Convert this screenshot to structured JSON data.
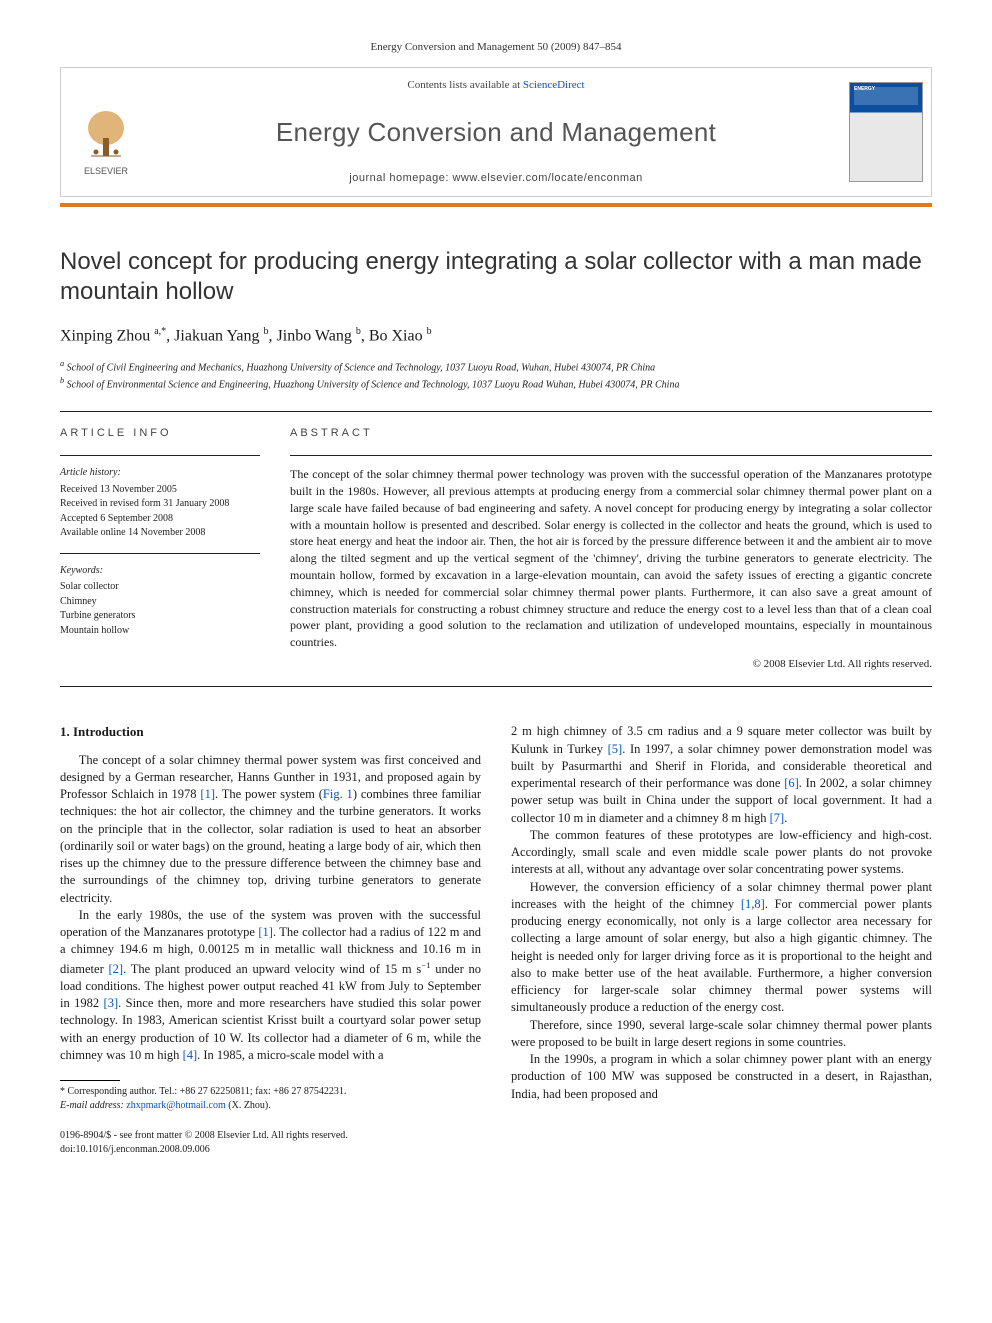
{
  "citation": "Energy Conversion and Management 50 (2009) 847–854",
  "header": {
    "contents_prefix": "Contents lists available at ",
    "contents_link": "ScienceDirect",
    "journal": "Energy Conversion and Management",
    "homepage_prefix": "journal homepage: ",
    "homepage_url": "www.elsevier.com/locate/enconman",
    "publisher_name": "ELSEVIER",
    "cover_title": "ENERGY"
  },
  "title": "Novel concept for producing energy integrating a solar collector with a man made mountain hollow",
  "authors_html": "Xinping Zhou <sup>a,*</sup>, Jiakuan Yang <sup>b</sup>, Jinbo Wang <sup>b</sup>, Bo Xiao <sup>b</sup>",
  "affiliations": {
    "a": "School of Civil Engineering and Mechanics, Huazhong University of Science and Technology, 1037 Luoyu Road, Wuhan, Hubei 430074, PR China",
    "b": "School of Environmental Science and Engineering, Huazhong University of Science and Technology, 1037 Luoyu Road Wuhan, Hubei 430074, PR China"
  },
  "article_info": {
    "heading": "ARTICLE INFO",
    "history_head": "Article history:",
    "received": "Received 13 November 2005",
    "revised": "Received in revised form 31 January 2008",
    "accepted": "Accepted 6 September 2008",
    "online": "Available online 14 November 2008",
    "keywords_head": "Keywords:",
    "keywords": [
      "Solar collector",
      "Chimney",
      "Turbine generators",
      "Mountain hollow"
    ]
  },
  "abstract": {
    "heading": "ABSTRACT",
    "text": "The concept of the solar chimney thermal power technology was proven with the successful operation of the Manzanares prototype built in the 1980s. However, all previous attempts at producing energy from a commercial solar chimney thermal power plant on a large scale have failed because of bad engineering and safety. A novel concept for producing energy by integrating a solar collector with a mountain hollow is presented and described. Solar energy is collected in the collector and heats the ground, which is used to store heat energy and heat the indoor air. Then, the hot air is forced by the pressure difference between it and the ambient air to move along the tilted segment and up the vertical segment of the 'chimney', driving the turbine generators to generate electricity. The mountain hollow, formed by excavation in a large-elevation mountain, can avoid the safety issues of erecting a gigantic concrete chimney, which is needed for commercial solar chimney thermal power plants. Furthermore, it can also save a great amount of construction materials for constructing a robust chimney structure and reduce the energy cost to a level less than that of a clean coal power plant, providing a good solution to the reclamation and utilization of undeveloped mountains, especially in mountainous countries.",
    "copyright": "© 2008 Elsevier Ltd. All rights reserved."
  },
  "section1_head": "1. Introduction",
  "col1": {
    "p1a": "The concept of a solar chimney thermal power system was first conceived and designed by a German researcher, Hanns Gunther in 1931, and proposed again by Professor Schlaich in 1978 ",
    "p1b": ". The power system (",
    "p1c": ") combines three familiar techniques: the hot air collector, the chimney and the turbine generators. It works on the principle that in the collector, solar radiation is used to heat an absorber (ordinarily soil or water bags) on the ground, heating a large body of air, which then rises up the chimney due to the pressure difference between the chimney base and the surroundings of the chimney top, driving turbine generators to generate electricity.",
    "p2a": "In the early 1980s, the use of the system was proven with the successful operation of the Manzanares prototype ",
    "p2b": ". The collector had a radius of 122 m and a chimney 194.6 m high, 0.00125 m in metallic wall thickness and 10.16 m in diameter ",
    "p2c": ". The plant produced an upward velocity wind of 15 m s",
    "p2d": " under no load conditions. The highest power output reached 41 kW from July to September in 1982 ",
    "p2e": ". Since then, more and more researchers have studied this solar power technology. In 1983, American scientist Krisst built a courtyard solar power setup with an energy production of 10 W. Its collector had a diameter of 6 m, while the chimney was 10 m high ",
    "p2f": ". In 1985, a micro-scale model with a"
  },
  "col2": {
    "p1a": "2 m high chimney of 3.5 cm radius and a 9 square meter collector was built by Kulunk in Turkey ",
    "p1b": ". In 1997, a solar chimney power demonstration model was built by Pasurmarthi and Sherif in Florida, and considerable theoretical and experimental research of their performance was done ",
    "p1c": ". In 2002, a solar chimney power setup was built in China under the support of local government. It had a collector 10 m in diameter and a chimney 8 m high ",
    "p1d": ".",
    "p2": "The common features of these prototypes are low-efficiency and high-cost. Accordingly, small scale and even middle scale power plants do not provoke interests at all, without any advantage over solar concentrating power systems.",
    "p3a": "However, the conversion efficiency of a solar chimney thermal power plant increases with the height of the chimney ",
    "p3b": ". For commercial power plants producing energy economically, not only is a large collector area necessary for collecting a large amount of solar energy, but also a high gigantic chimney. The height is needed only for larger driving force as it is proportional to the height and also to make better use of the heat available. Furthermore, a higher conversion efficiency for larger-scale solar chimney thermal power systems will simultaneously produce a reduction of the energy cost.",
    "p4": "Therefore, since 1990, several large-scale solar chimney thermal power plants were proposed to be built in large desert regions in some countries.",
    "p5": "In the 1990s, a program in which a solar chimney power plant with an energy production of 100 MW was supposed be constructed in a desert, in Rajasthan, India, had been proposed and"
  },
  "refs": {
    "r1": "[1]",
    "r2": "[2]",
    "r3": "[3]",
    "r4": "[4]",
    "r5": "[5]",
    "r6": "[6]",
    "r7": "[7]",
    "r18": "[1,8]",
    "fig1": "Fig. 1"
  },
  "footnote": {
    "corr": "* Corresponding author. Tel.: +86 27 62250811; fax: +86 27 87542231.",
    "email_label": "E-mail address:",
    "email": "zhxpmark@hotmail.com",
    "email_who": " (X. Zhou)."
  },
  "bottom": {
    "issn": "0196-8904/$ - see front matter © 2008 Elsevier Ltd. All rights reserved.",
    "doi": "doi:10.1016/j.enconman.2008.09.006"
  },
  "colors": {
    "orange": "#e67817",
    "link": "#0056cc",
    "cover_blue": "#0a4fa0"
  }
}
